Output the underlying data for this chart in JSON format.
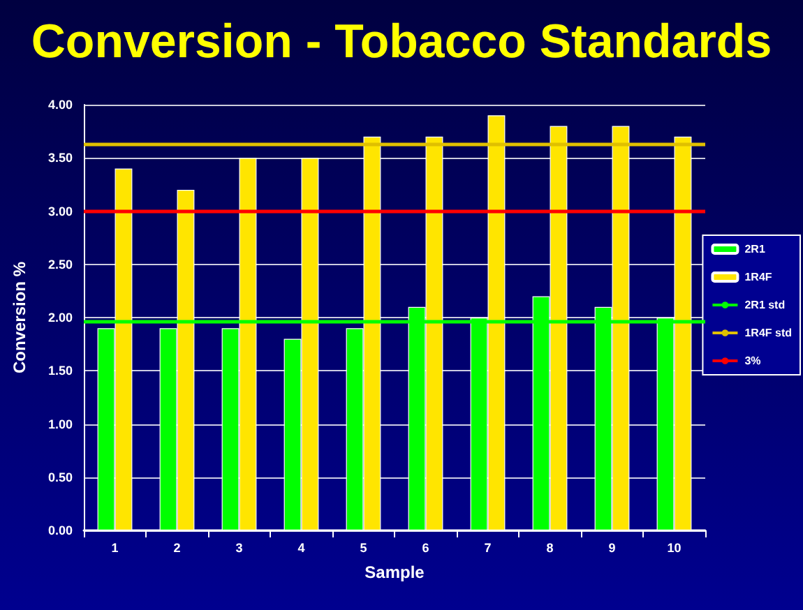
{
  "chart_data": {
    "type": "bar",
    "title": "Conversion - Tobacco Standards",
    "xlabel": "Sample",
    "ylabel": "Conversion %",
    "categories": [
      "1",
      "2",
      "3",
      "4",
      "5",
      "6",
      "7",
      "8",
      "9",
      "10"
    ],
    "series": [
      {
        "name": "2R1",
        "color": "#00ff00",
        "values": [
          1.9,
          1.9,
          1.9,
          1.8,
          1.9,
          2.1,
          2.0,
          2.2,
          2.1,
          2.0
        ]
      },
      {
        "name": "1R4F",
        "color": "#ffe500",
        "values": [
          3.4,
          3.2,
          3.5,
          3.5,
          3.7,
          3.7,
          3.9,
          3.8,
          3.8,
          3.7
        ]
      }
    ],
    "ref_lines": [
      {
        "axis": "y",
        "value": 1.97,
        "label": "2R1 std",
        "color": "#00ff00"
      },
      {
        "axis": "y",
        "value": 3.63,
        "label": "1R4F std",
        "color": "#e0c000"
      },
      {
        "axis": "y",
        "value": 3.0,
        "label": "3%",
        "color": "#ff0000"
      }
    ],
    "ylim": [
      0,
      4
    ],
    "yticks": [
      {
        "value": 0,
        "label": "0.00"
      },
      {
        "value": 0.5,
        "label": "0.50"
      },
      {
        "value": 1,
        "label": "1.00"
      },
      {
        "value": 1.5,
        "label": "1.50"
      },
      {
        "value": 2,
        "label": "2.00"
      },
      {
        "value": 2.5,
        "label": "2.50"
      },
      {
        "value": 3,
        "label": "3.00"
      },
      {
        "value": 3.5,
        "label": "3.50"
      },
      {
        "value": 4,
        "label": "4.00"
      }
    ],
    "grid": "y",
    "legend": "right"
  }
}
